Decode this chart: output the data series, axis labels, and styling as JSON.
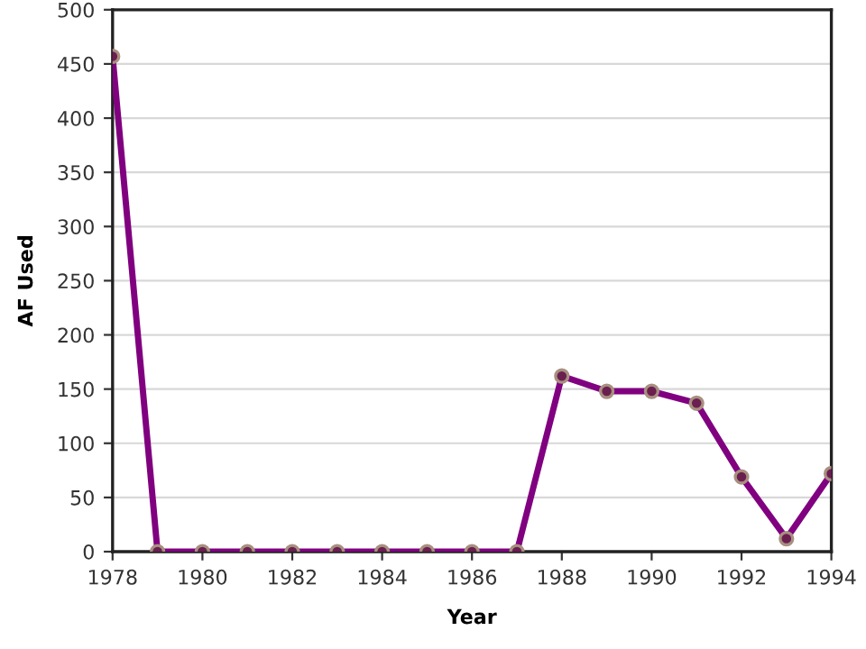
{
  "chart_data": {
    "type": "line",
    "xlabel": "Year",
    "ylabel": "AF Used",
    "x": [
      1978,
      1979,
      1980,
      1981,
      1982,
      1983,
      1984,
      1985,
      1986,
      1987,
      1988,
      1989,
      1990,
      1991,
      1992,
      1993,
      1994
    ],
    "series": [
      {
        "color": "#800080",
        "values": [
          457,
          0,
          0,
          0,
          0,
          0,
          0,
          0,
          0,
          0,
          162,
          148,
          148,
          137,
          69,
          12,
          72
        ]
      }
    ],
    "xlim": [
      1978,
      1994
    ],
    "xticks": [
      1978,
      1980,
      1982,
      1984,
      1986,
      1988,
      1990,
      1992,
      1994
    ],
    "ylim": [
      0,
      500
    ],
    "yticks": [
      0,
      50,
      100,
      150,
      200,
      250,
      300,
      350,
      400,
      450,
      500
    ],
    "grid": "y",
    "marker": "circle",
    "line_style": "solid",
    "legend": false
  }
}
